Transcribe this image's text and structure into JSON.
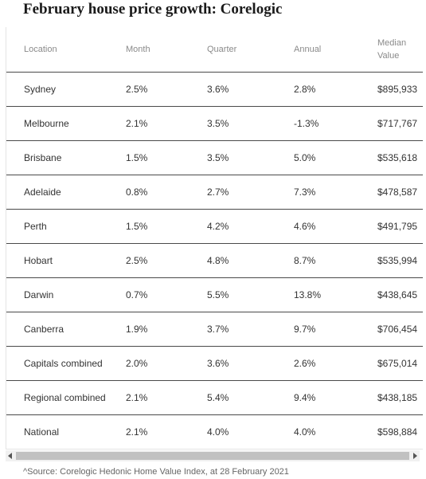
{
  "title": "February house price growth: Corelogic",
  "table": {
    "headers": [
      "Location",
      "Month",
      "Quarter",
      "Annual",
      "Median Value"
    ],
    "rows": [
      [
        "Sydney",
        "2.5%",
        "3.6%",
        "2.8%",
        "$895,933"
      ],
      [
        "Melbourne",
        "2.1%",
        "3.5%",
        "-1.3%",
        "$717,767"
      ],
      [
        "Brisbane",
        "1.5%",
        "3.5%",
        "5.0%",
        "$535,618"
      ],
      [
        "Adelaide",
        "0.8%",
        "2.7%",
        "7.3%",
        "$478,587"
      ],
      [
        "Perth",
        "1.5%",
        "4.2%",
        "4.6%",
        "$491,795"
      ],
      [
        "Hobart",
        "2.5%",
        "4.8%",
        "8.7%",
        "$535,994"
      ],
      [
        "Darwin",
        "0.7%",
        "5.5%",
        "13.8%",
        "$438,645"
      ],
      [
        "Canberra",
        "1.9%",
        "3.7%",
        "9.7%",
        "$706,454"
      ],
      [
        "Capitals combined",
        "2.0%",
        "3.6%",
        "2.6%",
        "$675,014"
      ],
      [
        "Regional combined",
        "2.1%",
        "5.4%",
        "9.4%",
        "$438,185"
      ],
      [
        "National",
        "2.1%",
        "4.0%",
        "4.0%",
        "$598,884"
      ]
    ]
  },
  "source": "^Source: Corelogic Hedonic Home Value Index, at 28 February 2021",
  "colors": {
    "row_border": "#4a4a4a",
    "header_text": "#8a8a8a",
    "scroll_thumb": "#c1c1c1"
  }
}
